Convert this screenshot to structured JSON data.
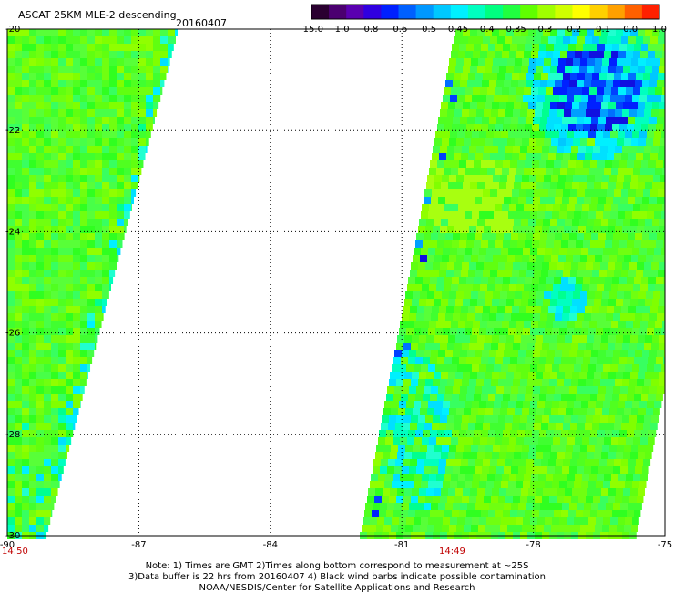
{
  "title": "ASCAT 25KM MLE-2 descending",
  "date": "20160407",
  "colorbar": {
    "labels": [
      "-15.0",
      "-1.0",
      "-0.8",
      "-0.6",
      "-0.5",
      "-0.45",
      "-0.4",
      "-0.35",
      "-0.3",
      "-0.2",
      "-0.1",
      "0.0",
      "1.0"
    ],
    "colors": [
      "#2a0030",
      "#4b0070",
      "#5a00b0",
      "#3000e0",
      "#0020ff",
      "#0060ff",
      "#0098ff",
      "#00c8ff",
      "#00f0ff",
      "#00ffc0",
      "#00ff80",
      "#20ff40",
      "#60ff00",
      "#a0ff00",
      "#d0ff00",
      "#ffff00",
      "#ffd000",
      "#ffa000",
      "#ff6000",
      "#ff2000"
    ]
  },
  "axes": {
    "x_labels": [
      "-90",
      "-87",
      "-84",
      "-81",
      "-78",
      "-75"
    ],
    "y_labels": [
      "-20",
      "-22",
      "-24",
      "-26",
      "-28",
      "-30"
    ]
  },
  "times": [
    "14:50",
    "14:49"
  ],
  "notes": [
    "Note: 1) Times are GMT 2)Times along bottom correspond to measurement at ~25S",
    "3)Data buffer is 22 hrs from 20160407 4) Black wind barbs indicate possible contamination",
    "NOAA/NESDIS/Center for Satellite Applications and Research"
  ]
}
